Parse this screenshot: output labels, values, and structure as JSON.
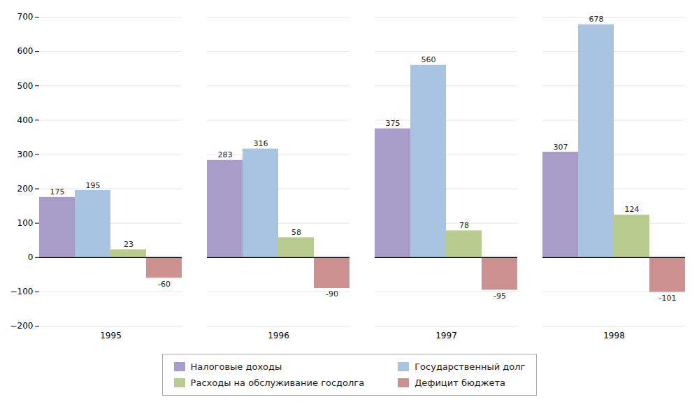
{
  "chart_data": {
    "type": "bar",
    "categories": [
      "1995",
      "1996",
      "1997",
      "1998"
    ],
    "series": [
      {
        "name": "Налоговые доходы",
        "color": "#a89cc8",
        "values": [
          175,
          283,
          375,
          307
        ]
      },
      {
        "name": "Государственный долг",
        "color": "#a8c4e0",
        "values": [
          195,
          316,
          560,
          678
        ]
      },
      {
        "name": "Расходы на обслуживание госдолга",
        "color": "#b8cc90",
        "values": [
          23,
          58,
          78,
          124
        ]
      },
      {
        "name": "Дефицит бюджета",
        "color": "#cc9090",
        "values": [
          -60,
          -90,
          -95,
          -101
        ]
      }
    ],
    "ylim": [
      -200,
      700
    ],
    "yticks": [
      -200,
      -100,
      0,
      100,
      200,
      300,
      400,
      500,
      600,
      700
    ],
    "grid": true,
    "data_labels": true,
    "legend": "bottom"
  }
}
